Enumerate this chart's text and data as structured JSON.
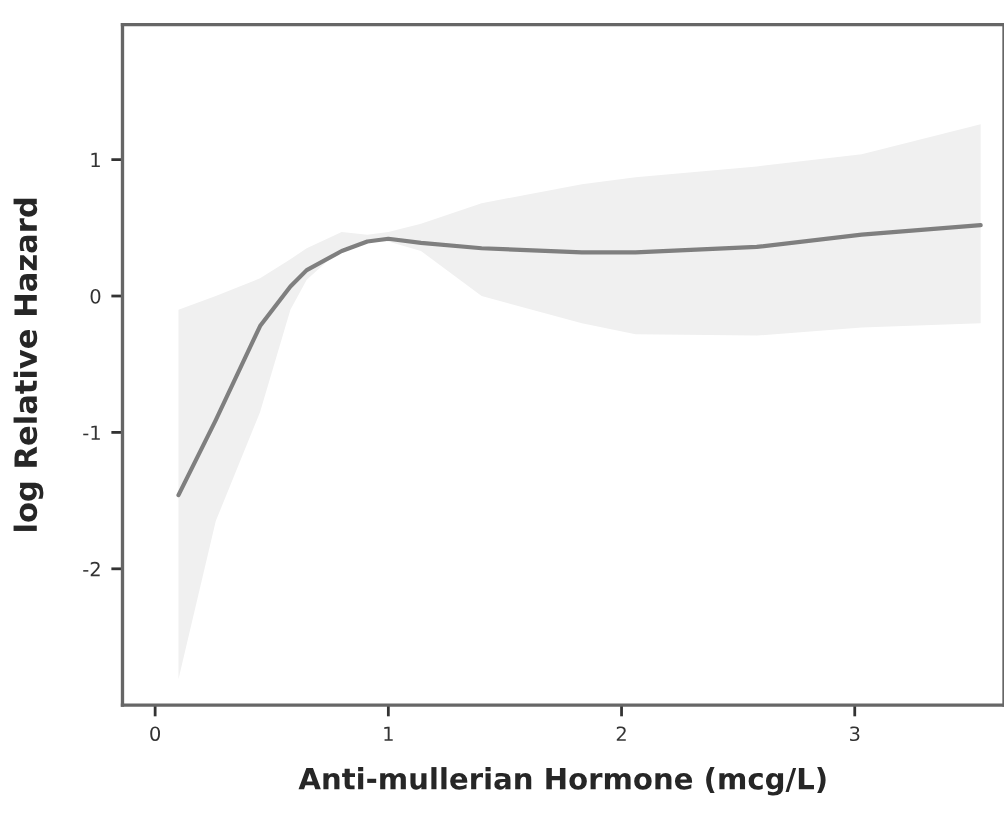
{
  "chart_data": {
    "type": "line",
    "xlabel": "Anti-mullerian Hormone (mcg/L)",
    "ylabel": "log Relative Hazard",
    "x": [
      0.1,
      0.26,
      0.45,
      0.58,
      0.65,
      0.8,
      0.91,
      1.0,
      1.14,
      1.4,
      1.83,
      2.06,
      2.58,
      3.03,
      3.54
    ],
    "series": [
      {
        "color": "#7f7f7f",
        "values": [
          -1.46,
          -0.91,
          -0.22,
          0.07,
          0.19,
          0.33,
          0.4,
          0.42,
          0.39,
          0.35,
          0.32,
          0.32,
          0.36,
          0.45,
          0.52
        ],
        "lower": [
          -2.81,
          -1.65,
          -0.85,
          -0.1,
          0.12,
          0.35,
          0.4,
          0.4,
          0.33,
          0.0,
          -0.2,
          -0.28,
          -0.29,
          -0.23,
          -0.2
        ],
        "upper": [
          -0.1,
          0.0,
          0.13,
          0.27,
          0.35,
          0.47,
          0.45,
          0.47,
          0.53,
          0.68,
          0.82,
          0.87,
          0.95,
          1.04,
          1.26
        ]
      }
    ],
    "xlim": [
      -0.14,
      3.64
    ],
    "ylim": [
      -3.0,
      1.99
    ],
    "xticks": [
      0,
      1,
      2,
      3
    ],
    "yticks": [
      -2,
      -1,
      0,
      1
    ],
    "grid": false,
    "legend": false,
    "marker": "none",
    "line_style": "solid"
  }
}
